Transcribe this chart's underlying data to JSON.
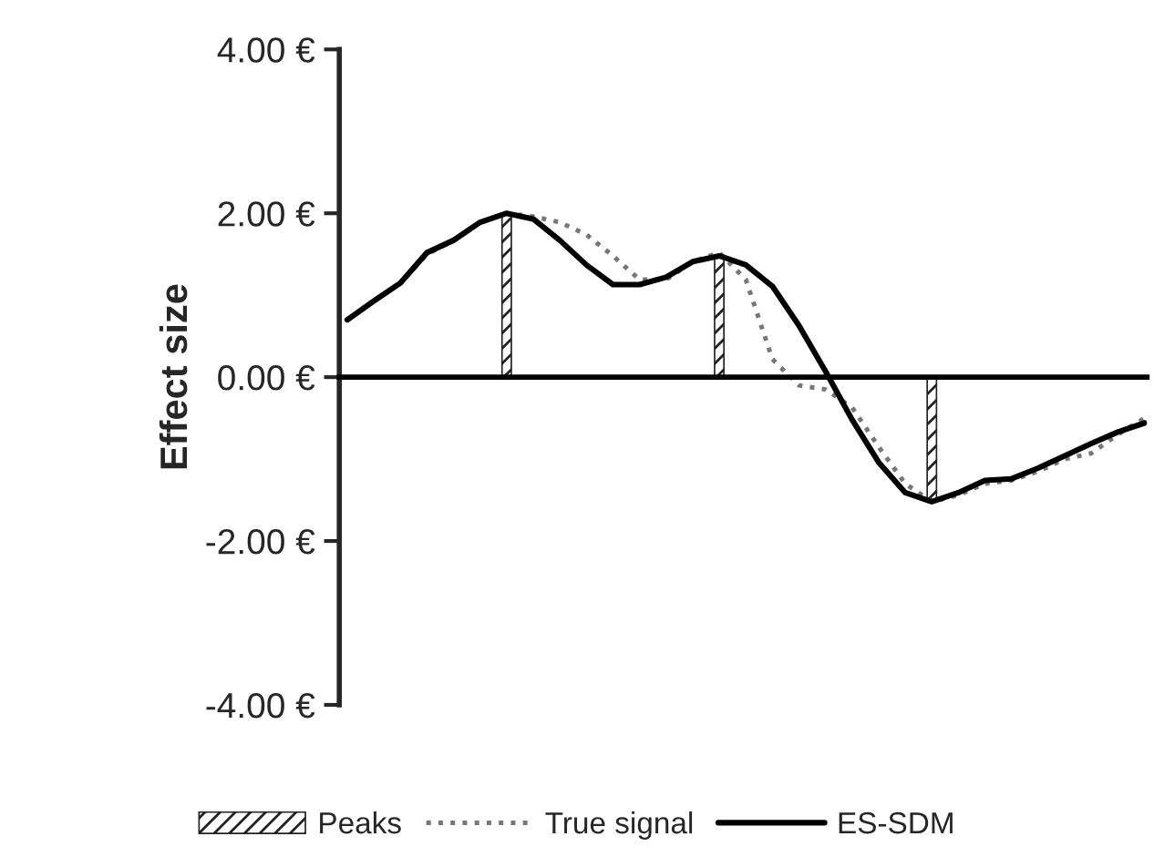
{
  "chart_data": {
    "type": "line",
    "ylabel": "Effect size",
    "categories": [
      null,
      null,
      null,
      null,
      null,
      null,
      null,
      null,
      null,
      null,
      null,
      null,
      null,
      null,
      null,
      null,
      null,
      null,
      null,
      null,
      null,
      null,
      null,
      null,
      null,
      null,
      null,
      null,
      null,
      null,
      null
    ],
    "ylim": [
      -4,
      4
    ],
    "yticks": [
      {
        "value": 4,
        "label": "4.00 €"
      },
      {
        "value": 2,
        "label": "2.00 €"
      },
      {
        "value": 0,
        "label": "0.00 €"
      },
      {
        "value": -2,
        "label": "-2.00 €"
      },
      {
        "value": -4,
        "label": "-4.00 €"
      }
    ],
    "legend": "bottom",
    "series": [
      {
        "name": "Peaks",
        "type": "bar",
        "color": "#222222",
        "values": [
          null,
          null,
          null,
          null,
          null,
          null,
          2.0,
          null,
          null,
          null,
          null,
          null,
          null,
          null,
          1.48,
          null,
          null,
          null,
          null,
          null,
          null,
          null,
          -1.52,
          null,
          null,
          null,
          null,
          null,
          null,
          null,
          null
        ]
      },
      {
        "name": "True signal",
        "line_style": "dotted",
        "color": "#777777",
        "values": [
          0.7,
          0.93,
          1.15,
          1.5,
          1.67,
          1.89,
          2.0,
          1.96,
          1.89,
          1.74,
          1.48,
          1.19,
          1.19,
          1.41,
          1.52,
          1.19,
          0.22,
          -0.1,
          -0.15,
          -0.37,
          -0.85,
          -1.3,
          -1.52,
          -1.44,
          -1.3,
          -1.26,
          -1.15,
          -1.0,
          -0.93,
          -0.7,
          -0.5
        ]
      },
      {
        "name": "ES-SDM",
        "line_style": "solid",
        "color": "#000000",
        "values": [
          0.7,
          0.93,
          1.15,
          1.52,
          1.67,
          1.89,
          2.0,
          1.93,
          1.67,
          1.37,
          1.13,
          1.13,
          1.22,
          1.41,
          1.48,
          1.37,
          1.11,
          0.63,
          0.07,
          -0.52,
          -1.04,
          -1.41,
          -1.52,
          -1.41,
          -1.26,
          -1.24,
          -1.11,
          -0.96,
          -0.81,
          -0.67,
          -0.56
        ]
      }
    ]
  }
}
